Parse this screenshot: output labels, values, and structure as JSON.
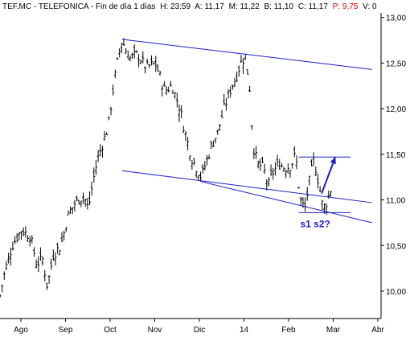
{
  "chart_data": {
    "type": "ohlc",
    "header": {
      "symbol": "TEF.MC - TELEFONICA - Fin de día 1 días",
      "h": "H: 23:59",
      "a": "A: 11,17",
      "m": "M: 11,22",
      "b": "B: 11,10",
      "c": "C: 11,17",
      "p": "P: 9,75",
      "v": "V: 0"
    },
    "x_tick_labels": [
      "Ago",
      "Sep",
      "Oct",
      "Nov",
      "Dic",
      "14",
      "Feb",
      "Mar",
      "Abr"
    ],
    "y_ticks": [
      10.0,
      10.5,
      11.0,
      11.5,
      12.0,
      12.5,
      13.0
    ],
    "y_tick_labels": [
      "10,00",
      "10,50",
      "11,00",
      "11,50",
      "12,00",
      "12,50",
      "13,00"
    ],
    "ylim": [
      9.7,
      13.05
    ],
    "x_span_days": 250,
    "price_path": [
      [
        0,
        9.95
      ],
      [
        3,
        10.2
      ],
      [
        8,
        10.5
      ],
      [
        14,
        10.67
      ],
      [
        20,
        10.6
      ],
      [
        24,
        10.3
      ],
      [
        28,
        10.35
      ],
      [
        31,
        10.05
      ],
      [
        35,
        10.4
      ],
      [
        40,
        10.5
      ],
      [
        45,
        10.85
      ],
      [
        50,
        10.98
      ],
      [
        55,
        11.05
      ],
      [
        58,
        10.9
      ],
      [
        61,
        11.2
      ],
      [
        64,
        11.45
      ],
      [
        68,
        11.65
      ],
      [
        71,
        11.8
      ],
      [
        75,
        12.3
      ],
      [
        78,
        12.6
      ],
      [
        80,
        12.75
      ],
      [
        85,
        12.55
      ],
      [
        90,
        12.6
      ],
      [
        96,
        12.45
      ],
      [
        102,
        12.5
      ],
      [
        108,
        12.2
      ],
      [
        113,
        12.25
      ],
      [
        118,
        12.0
      ],
      [
        122,
        11.7
      ],
      [
        126,
        11.45
      ],
      [
        129,
        11.35
      ],
      [
        132,
        11.25
      ],
      [
        135,
        11.4
      ],
      [
        139,
        11.6
      ],
      [
        143,
        11.75
      ],
      [
        147,
        12.0
      ],
      [
        151,
        12.2
      ],
      [
        155,
        12.35
      ],
      [
        158,
        12.5
      ],
      [
        161,
        12.58
      ],
      [
        164,
        12.2
      ],
      [
        166,
        11.6
      ],
      [
        169,
        11.4
      ],
      [
        173,
        11.35
      ],
      [
        176,
        11.15
      ],
      [
        179,
        11.3
      ],
      [
        183,
        11.4
      ],
      [
        187,
        11.35
      ],
      [
        191,
        11.38
      ],
      [
        194,
        11.5
      ],
      [
        197,
        11.0
      ],
      [
        200,
        10.9
      ],
      [
        203,
        11.2
      ],
      [
        206,
        11.45
      ],
      [
        209,
        11.2
      ],
      [
        212,
        10.9
      ],
      [
        215,
        11.0
      ],
      [
        218,
        11.17
      ]
    ],
    "trendlines": [
      {
        "name": "upper-channel",
        "x": [
          80,
          244
        ],
        "y": [
          12.76,
          12.43
        ]
      },
      {
        "name": "lower-channel",
        "x": [
          80,
          244
        ],
        "y": [
          11.32,
          10.97
        ]
      },
      {
        "name": "support-line",
        "x": [
          132,
          244
        ],
        "y": [
          11.2,
          10.75
        ]
      }
    ],
    "horizontal_lines": [
      {
        "name": "resistance",
        "y": 11.47,
        "x": [
          196,
          230
        ]
      },
      {
        "name": "support",
        "y": 10.86,
        "x": [
          196,
          230
        ]
      }
    ],
    "arrow": {
      "from": [
        211,
        11.07
      ],
      "to": [
        220,
        11.47
      ]
    },
    "annotation": {
      "text": "s1 s2?",
      "x": 197,
      "y": 10.7
    },
    "colors": {
      "price": "#000000",
      "lines": "#1c1cc8",
      "header_red": "#e00000"
    }
  }
}
